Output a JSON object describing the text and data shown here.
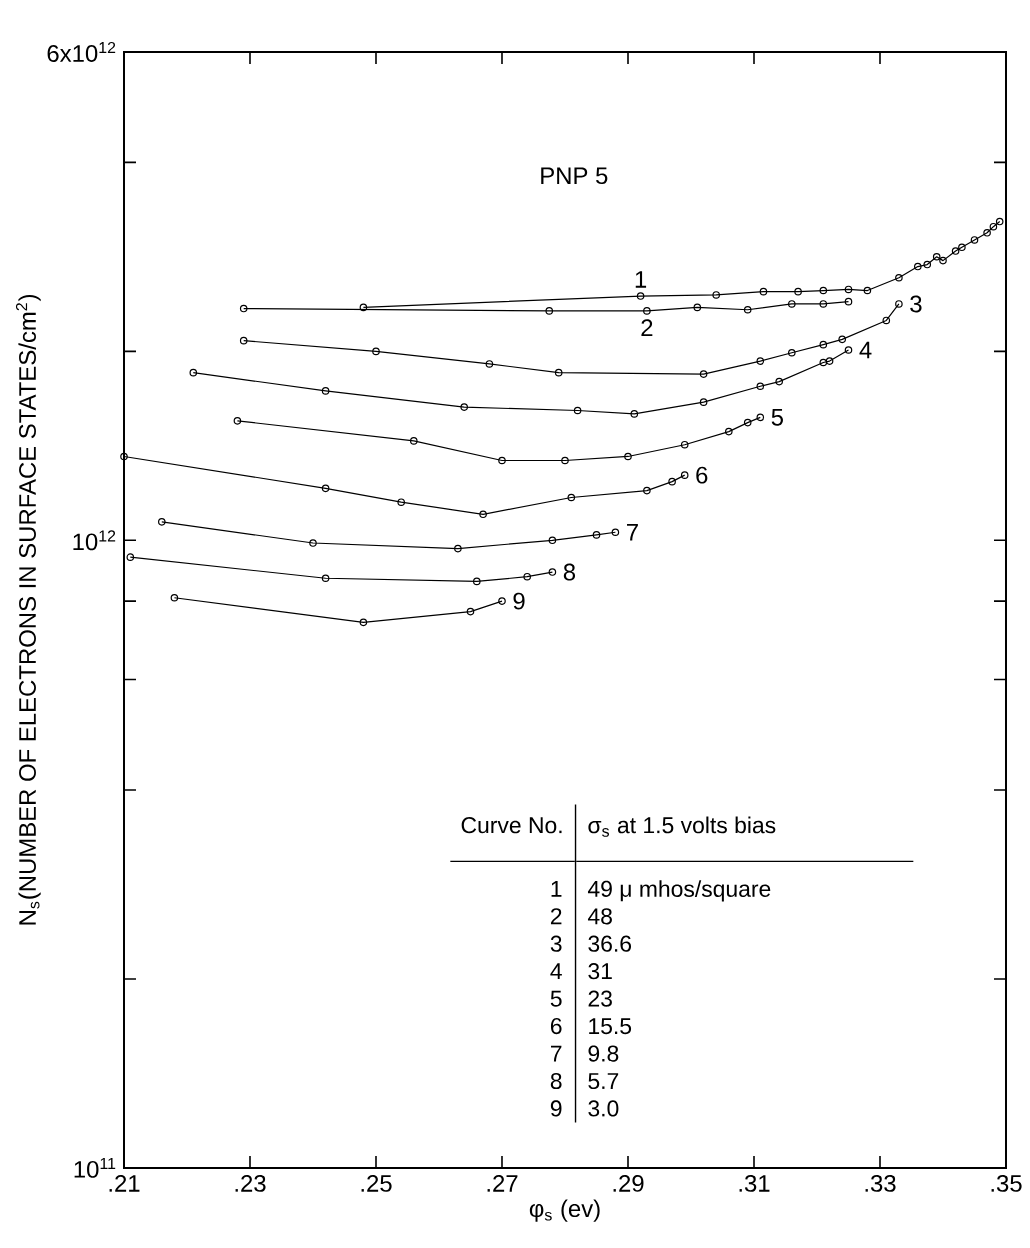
{
  "chart_data": {
    "type": "line",
    "title": "PNP 5",
    "xlabel": "φ$_{s}$ (ev)",
    "ylabel": "N$_{s}$(NUMBER OF ELECTRONS IN SURFACE STATES/cm$^{2}$)",
    "log": "y",
    "marker": "circle",
    "line_style": "solid",
    "legend": false,
    "xlim": [
      0.21,
      0.35
    ],
    "ylim": [
      100000000000.0,
      6000000000000.0
    ],
    "xticks": [
      {
        "value": 0.21,
        "label": ".21"
      },
      {
        "value": 0.23,
        "label": ".23"
      },
      {
        "value": 0.25,
        "label": ".25"
      },
      {
        "value": 0.27,
        "label": ".27"
      },
      {
        "value": 0.29,
        "label": ".29"
      },
      {
        "value": 0.31,
        "label": ".31"
      },
      {
        "value": 0.33,
        "label": ".33"
      },
      {
        "value": 0.35,
        "label": ".35"
      }
    ],
    "yticks": [
      {
        "value": 100000000000.0,
        "label": "10$^{11}$"
      },
      {
        "value": 200000000000.0,
        "label": null
      },
      {
        "value": 400000000000.0,
        "label": null
      },
      {
        "value": 600000000000.0,
        "label": null
      },
      {
        "value": 800000000000.0,
        "label": null
      },
      {
        "value": 1000000000000.0,
        "label": "10$^{12}$"
      },
      {
        "value": 2000000000000.0,
        "label": null
      },
      {
        "value": 4000000000000.0,
        "label": null
      },
      {
        "value": 6000000000000.0,
        "label": "6x10$^{12}$"
      }
    ],
    "annotations": [
      "Curve No.",
      "σ$_{s}$ at 1.5 volts bias",
      "1",
      "49 μ mhos/square",
      "2",
      "48",
      "3",
      "36.6",
      "4",
      "31",
      "5",
      "23",
      "6",
      "15.5",
      "7",
      "9.8",
      "8",
      "5.7",
      "9",
      "3.0"
    ],
    "series": [
      {
        "name": "1",
        "color": "#000000",
        "x": [
          0.248,
          0.292,
          0.304,
          0.3115,
          0.317,
          0.321,
          0.325,
          0.328,
          0.333,
          0.336,
          0.3375,
          0.339,
          0.34,
          0.342,
          0.343,
          0.345,
          0.347,
          0.348,
          0.349
        ],
        "values": [
          2350000000000.0,
          2450000000000.0,
          2460000000000.0,
          2490000000000.0,
          2490000000000.0,
          2500000000000.0,
          2510000000000.0,
          2500000000000.0,
          2620000000000.0,
          2730000000000.0,
          2750000000000.0,
          2830000000000.0,
          2790000000000.0,
          2890000000000.0,
          2930000000000.0,
          3010000000000.0,
          3090000000000.0,
          3160000000000.0,
          3220000000000.0
        ]
      },
      {
        "name": "2",
        "color": "#000000",
        "x": [
          0.229,
          0.2775,
          0.293,
          0.301,
          0.309,
          0.316,
          0.321,
          0.325
        ],
        "values": [
          2340000000000.0,
          2320000000000.0,
          2320000000000.0,
          2350000000000.0,
          2330000000000.0,
          2380000000000.0,
          2380000000000.0,
          2400000000000.0
        ]
      },
      {
        "name": "3",
        "color": "#000000",
        "x": [
          0.229,
          0.25,
          0.268,
          0.279,
          0.302,
          0.311,
          0.316,
          0.321,
          0.324,
          0.331,
          0.333
        ],
        "values": [
          2080000000000.0,
          2000000000000.0,
          1910000000000.0,
          1850000000000.0,
          1840000000000.0,
          1930000000000.0,
          1990000000000.0,
          2050000000000.0,
          2090000000000.0,
          2240000000000.0,
          2380000000000.0
        ]
      },
      {
        "name": "4",
        "color": "#000000",
        "x": [
          0.221,
          0.242,
          0.264,
          0.282,
          0.291,
          0.302,
          0.311,
          0.314,
          0.321,
          0.322,
          0.325
        ],
        "values": [
          1850000000000.0,
          1730000000000.0,
          1630000000000.0,
          1610000000000.0,
          1590000000000.0,
          1660000000000.0,
          1760000000000.0,
          1790000000000.0,
          1920000000000.0,
          1930000000000.0,
          2010000000000.0
        ]
      },
      {
        "name": "5",
        "color": "#000000",
        "x": [
          0.228,
          0.256,
          0.27,
          0.28,
          0.29,
          0.299,
          0.306,
          0.309,
          0.311
        ],
        "values": [
          1550000000000.0,
          1440000000000.0,
          1340000000000.0,
          1340000000000.0,
          1360000000000.0,
          1420000000000.0,
          1490000000000.0,
          1540000000000.0,
          1570000000000.0
        ]
      },
      {
        "name": "6",
        "color": "#000000",
        "x": [
          0.21,
          0.242,
          0.254,
          0.267,
          0.281,
          0.293,
          0.297,
          0.299
        ],
        "values": [
          1360000000000.0,
          1210000000000.0,
          1150000000000.0,
          1100000000000.0,
          1170000000000.0,
          1200000000000.0,
          1240000000000.0,
          1270000000000.0
        ]
      },
      {
        "name": "7",
        "color": "#000000",
        "x": [
          0.216,
          0.24,
          0.263,
          0.278,
          0.285,
          0.288
        ],
        "values": [
          1070000000000.0,
          990000000000.0,
          970000000000.0,
          1000000000000.0,
          1020000000000.0,
          1030000000000.0
        ]
      },
      {
        "name": "8",
        "color": "#000000",
        "x": [
          0.211,
          0.242,
          0.266,
          0.274,
          0.278
        ],
        "values": [
          940000000000.0,
          870000000000.0,
          860000000000.0,
          875000000000.0,
          890000000000.0
        ]
      },
      {
        "name": "9",
        "color": "#000000",
        "x": [
          0.218,
          0.248,
          0.265,
          0.27
        ],
        "values": [
          810000000000.0,
          740000000000.0,
          770000000000.0,
          800000000000.0
        ]
      }
    ]
  }
}
